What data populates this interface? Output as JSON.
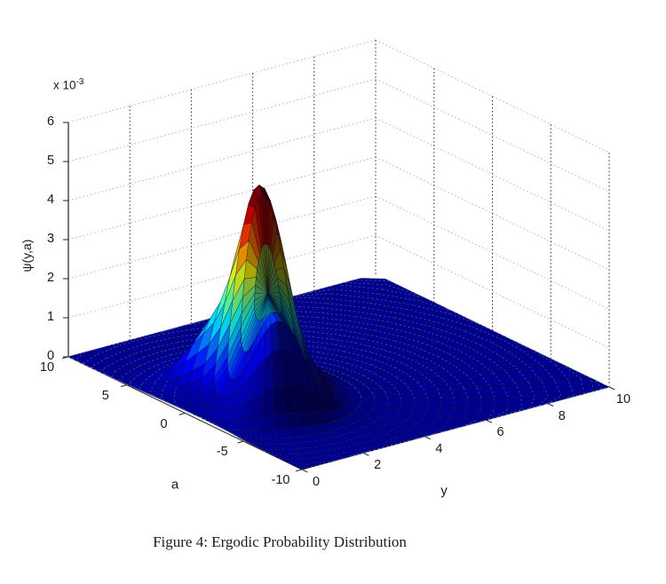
{
  "figure": {
    "background": "#ffffff",
    "caption": "Figure 4: Ergodic Probability Distribution"
  },
  "chart_data": {
    "type": "surface",
    "plot_style": "matlab-surf-3d-shaded",
    "colormap": "jet",
    "xlabel": "y",
    "ylabel": "a",
    "zlabel": "ψ(y,a)",
    "z_multiplier_prefix": "x 10",
    "z_multiplier_exponent": "-3",
    "y_axis_ticks": [
      0,
      2,
      4,
      6,
      8,
      10
    ],
    "a_axis_ticks": [
      10,
      5,
      0,
      -5,
      -10
    ],
    "z_axis_ticks": [
      0,
      1,
      2,
      3,
      4,
      5,
      6
    ],
    "y_range": [
      0,
      10
    ],
    "a_range": [
      -10,
      10
    ],
    "z_range_millis": [
      0,
      6
    ],
    "grid": true,
    "legend": "none",
    "peak": {
      "y": 2.6,
      "a": 0.3,
      "value_millis": 5.0
    },
    "surface_model": {
      "zmax_millis": 5.05,
      "modes": [
        {
          "y": 2.6,
          "a": 0.3,
          "sy": 0.62,
          "sa": 1.25,
          "h": 4.9,
          "cw": 1.0
        },
        {
          "y": 1.85,
          "a": -3.0,
          "sy": 0.62,
          "sa": 1.2,
          "h": 2.2,
          "cw": 0.25
        },
        {
          "y": 2.05,
          "a": 2.9,
          "sy": 0.65,
          "sa": 1.2,
          "h": 1.15,
          "cw": 1.0
        },
        {
          "y": 2.3,
          "a": -0.8,
          "sy": 1.3,
          "sa": 3.2,
          "h": 0.35,
          "cw": 1.0
        }
      ]
    },
    "colors": {
      "floor": "#000092",
      "grid_dark": "#2a2a2a",
      "grid_light": "#b4b4b4",
      "axis": "#333333",
      "tick_text": "#1a1a1a",
      "ring_dash": "#8296ff"
    }
  }
}
